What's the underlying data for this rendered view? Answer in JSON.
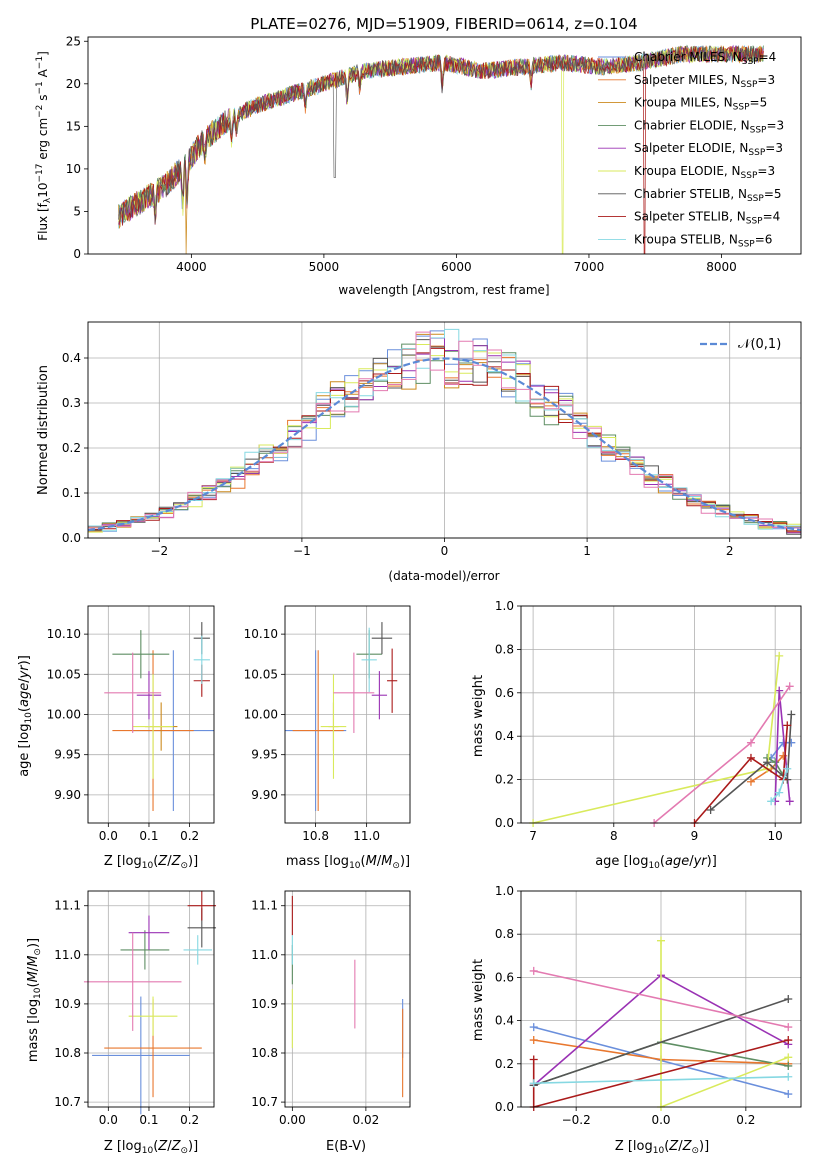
{
  "figure": {
    "title": "PLATE=0276, MJD=51909, FIBERID=0614, z=0.104"
  },
  "models": [
    {
      "name": "Chabrier MILES",
      "nssp": "4",
      "color": "#6a8fdc"
    },
    {
      "name": "Salpeter MILES",
      "nssp": "3",
      "color": "#e8772e"
    },
    {
      "name": "Kroupa MILES",
      "nssp": "5",
      "color": "#cc8a1e"
    },
    {
      "name": "Chabrier ELODIE",
      "nssp": "3",
      "color": "#5e8e63"
    },
    {
      "name": "Salpeter ELODIE",
      "nssp": "3",
      "color": "#9a32b4"
    },
    {
      "name": "Kroupa ELODIE",
      "nssp": "3",
      "color": "#d9ea5c"
    },
    {
      "name": "Chabrier STELIB",
      "nssp": "5",
      "color": "#555555"
    },
    {
      "name": "Salpeter STELIB",
      "nssp": "4",
      "color": "#aa1a1a"
    },
    {
      "name": "Kroupa STELIB",
      "nssp": "6",
      "color": "#86d8e2"
    }
  ],
  "chart_data": [
    {
      "id": "spectrum",
      "type": "line",
      "title": "PLATE=0276, MJD=51909, FIBERID=0614, z=0.104",
      "xlabel": "wavelength [Angstrom, rest frame]",
      "ylabel": "Flux [f_λ 10^-17 erg cm^-2 s^-1 A^-1]",
      "xlim": [
        3220,
        8600
      ],
      "ylim": [
        0,
        25.5
      ],
      "xticks": [
        4000,
        5000,
        6000,
        7000,
        8000
      ],
      "yticks": [
        0,
        5,
        10,
        15,
        20,
        25
      ],
      "legend": "right",
      "continuum": {
        "x": [
          3450,
          3600,
          3800,
          3950,
          4100,
          4300,
          4500,
          4800,
          5000,
          5300,
          5600,
          5900,
          6200,
          6500,
          6800,
          7100,
          7400,
          7700,
          8000,
          8300
        ],
        "y": [
          4.5,
          6.0,
          8.0,
          10.5,
          13.5,
          16.0,
          17.5,
          19.0,
          20.0,
          21.5,
          22.0,
          22.5,
          21.5,
          22.0,
          22.5,
          22.0,
          22.5,
          23.5,
          23.5,
          23.5
        ]
      },
      "dropouts": [
        {
          "x": 3960,
          "model": "Kroupa MILES"
        },
        {
          "x": 6800,
          "model": "Kroupa ELODIE"
        },
        {
          "x": 7420,
          "model": "Salpeter STELIB"
        }
      ]
    },
    {
      "id": "residuals",
      "type": "step",
      "xlabel": "(data-model)/error",
      "ylabel": "Normed distribution",
      "xlim": [
        -2.5,
        2.5
      ],
      "ylim": [
        0,
        0.48
      ],
      "xticks": [
        -2,
        -1,
        0,
        1,
        2
      ],
      "yticks": [
        0.0,
        0.1,
        0.2,
        0.3,
        0.4
      ],
      "grid": true,
      "legend": "top-right",
      "reference_label": "𝒩(0,1)",
      "reference_color": "#5b8ad6",
      "bin_width": 0.1,
      "bin_start": -2.5
    },
    {
      "id": "age-vs-Z",
      "type": "errorbar",
      "xlabel": "Z [log₁₀(Z/Z⊙)]",
      "ylabel": "age [log₁₀(age/yr)]",
      "xlim": [
        -0.05,
        0.26
      ],
      "ylim": [
        9.865,
        10.135
      ],
      "xticks": [
        0.0,
        0.1,
        0.2
      ],
      "yticks": [
        9.9,
        9.95,
        10.0,
        10.05,
        10.1
      ],
      "grid": true,
      "points": [
        {
          "model": "Chabrier MILES",
          "x": 0.16,
          "xerr": 0.1,
          "y": 9.98,
          "yerr": 0.1
        },
        {
          "model": "Salpeter MILES",
          "x": 0.11,
          "xerr": 0.1,
          "y": 9.98,
          "yerr": 0.1
        },
        {
          "model": "Kroupa MILES",
          "x": 0.13,
          "xerr": 0.04,
          "y": 9.985,
          "yerr": 0.03
        },
        {
          "model": "Chabrier ELODIE",
          "x": 0.08,
          "xerr": 0.07,
          "y": 10.075,
          "yerr": 0.03
        },
        {
          "model": "Salpeter ELODIE",
          "x": 0.1,
          "xerr": 0.03,
          "y": 10.024,
          "yerr": 0.03
        },
        {
          "model": "Kroupa ELODIE",
          "x": 0.11,
          "xerr": 0.05,
          "y": 9.985,
          "yerr": 0.065
        },
        {
          "model": "Chabrier STELIB",
          "x": 0.23,
          "xerr": 0.02,
          "y": 10.095,
          "yerr": 0.02
        },
        {
          "model": "Salpeter STELIB",
          "x": 0.23,
          "xerr": 0.02,
          "y": 10.042,
          "yerr": 0.02
        },
        {
          "model": "Kroupa STELIB",
          "x": 0.23,
          "xerr": 0.02,
          "y": 10.068,
          "yerr": 0.03
        },
        {
          "model": "pink",
          "x": 0.06,
          "xerr": 0.07,
          "y": 10.027,
          "yerr": 0.05
        }
      ]
    },
    {
      "id": "age-vs-mass",
      "type": "errorbar",
      "xlabel": "mass [log₁₀(M/M⊙)]",
      "ylabel": "",
      "xlim": [
        10.68,
        11.17
      ],
      "ylim": [
        9.865,
        10.135
      ],
      "xticks": [
        10.8,
        11.0
      ],
      "yticks": [
        9.9,
        9.95,
        10.0,
        10.05,
        10.1
      ],
      "grid": true,
      "points": [
        {
          "model": "Chabrier MILES",
          "x": 10.8,
          "xerr": 0.12,
          "y": 9.98,
          "yerr": 0.1
        },
        {
          "model": "Salpeter MILES",
          "x": 10.81,
          "xerr": 0.1,
          "y": 9.98,
          "yerr": 0.1
        },
        {
          "model": "Kroupa MILES",
          "x": 10.87,
          "xerr": 0.02,
          "y": 9.985,
          "yerr": 0.03
        },
        {
          "model": "Chabrier ELODIE",
          "x": 11.01,
          "xerr": 0.05,
          "y": 10.075,
          "yerr": 0.03
        },
        {
          "model": "Salpeter ELODIE",
          "x": 11.05,
          "xerr": 0.03,
          "y": 10.024,
          "yerr": 0.03
        },
        {
          "model": "Kroupa ELODIE",
          "x": 10.87,
          "xerr": 0.05,
          "y": 9.985,
          "yerr": 0.065
        },
        {
          "model": "Chabrier STELIB",
          "x": 11.06,
          "xerr": 0.04,
          "y": 10.095,
          "yerr": 0.02
        },
        {
          "model": "Salpeter STELIB",
          "x": 11.1,
          "xerr": 0.02,
          "y": 10.042,
          "yerr": 0.04
        },
        {
          "model": "Kroupa STELIB",
          "x": 11.01,
          "xerr": 0.03,
          "y": 10.068,
          "yerr": 0.04
        },
        {
          "model": "pink",
          "x": 10.95,
          "xerr": 0.08,
          "y": 10.027,
          "yerr": 0.05
        }
      ]
    },
    {
      "id": "mass-weight-vs-age",
      "type": "line",
      "xlabel": "age [log₁₀(age/yr)]",
      "ylabel": "mass weight",
      "xlim": [
        6.85,
        10.32
      ],
      "ylim": [
        0,
        1
      ],
      "xticks": [
        7,
        8,
        9,
        10
      ],
      "yticks": [
        0.0,
        0.2,
        0.4,
        0.6,
        0.8,
        1.0
      ],
      "grid": true,
      "series": [
        {
          "model": "Chabrier MILES",
          "x": [
            9.95,
            10.1,
            10.2
          ],
          "y": [
            0.3,
            0.37,
            0.37
          ]
        },
        {
          "model": "Salpeter MILES",
          "x": [
            9.7,
            9.95,
            10.1
          ],
          "y": [
            0.19,
            0.25,
            0.31
          ]
        },
        {
          "model": "Chabrier ELODIE",
          "x": [
            9.9,
            10.0,
            10.1
          ],
          "y": [
            0.3,
            0.28,
            0.22
          ]
        },
        {
          "model": "Salpeter ELODIE",
          "x": [
            10.0,
            10.05,
            10.18
          ],
          "y": [
            0.1,
            0.61,
            0.1
          ]
        },
        {
          "model": "Kroupa ELODIE",
          "x": [
            7.0,
            9.9,
            10.05
          ],
          "y": [
            0.0,
            0.25,
            0.77
          ]
        },
        {
          "model": "Chabrier STELIB",
          "x": [
            9.2,
            9.9,
            10.15,
            10.2
          ],
          "y": [
            0.06,
            0.28,
            0.2,
            0.5
          ]
        },
        {
          "model": "Salpeter STELIB",
          "x": [
            9.0,
            9.7,
            10.1,
            10.15
          ],
          "y": [
            0.0,
            0.3,
            0.2,
            0.45
          ]
        },
        {
          "model": "Kroupa STELIB",
          "x": [
            9.95,
            10.05,
            10.15
          ],
          "y": [
            0.1,
            0.14,
            0.25
          ]
        },
        {
          "model": "pink",
          "x": [
            8.5,
            9.7,
            10.18
          ],
          "y": [
            0.0,
            0.37,
            0.63
          ]
        }
      ]
    },
    {
      "id": "mass-vs-Z",
      "type": "errorbar",
      "xlabel": "Z [log₁₀(Z/Z⊙)]",
      "ylabel": "mass [log₁₀(M/M⊙)]",
      "xlim": [
        -0.05,
        0.26
      ],
      "ylim": [
        10.69,
        11.13
      ],
      "xticks": [
        0.0,
        0.1,
        0.2
      ],
      "yticks": [
        10.7,
        10.8,
        10.9,
        11.0,
        11.1
      ],
      "grid": true,
      "points": [
        {
          "model": "Chabrier MILES",
          "x": 0.08,
          "xerr": 0.12,
          "y": 10.795,
          "yerr": 0.12
        },
        {
          "model": "Salpeter MILES",
          "x": 0.11,
          "xerr": 0.12,
          "y": 10.81,
          "yerr": 0.1
        },
        {
          "model": "Chabrier ELODIE",
          "x": 0.09,
          "xerr": 0.06,
          "y": 11.01,
          "yerr": 0.04
        },
        {
          "model": "Salpeter ELODIE",
          "x": 0.1,
          "xerr": 0.05,
          "y": 11.045,
          "yerr": 0.035
        },
        {
          "model": "Kroupa ELODIE",
          "x": 0.11,
          "xerr": 0.06,
          "y": 10.875,
          "yerr": 0.04
        },
        {
          "model": "Chabrier STELIB",
          "x": 0.23,
          "xerr": 0.035,
          "y": 11.055,
          "yerr": 0.04
        },
        {
          "model": "Salpeter STELIB",
          "x": 0.23,
          "xerr": 0.035,
          "y": 11.1,
          "yerr": 0.03
        },
        {
          "model": "Kroupa STELIB",
          "x": 0.22,
          "xerr": 0.035,
          "y": 11.01,
          "yerr": 0.03
        },
        {
          "model": "pink",
          "x": 0.06,
          "xerr": 0.12,
          "y": 10.945,
          "yerr": 0.1
        }
      ]
    },
    {
      "id": "mass-vs-EBV",
      "type": "errorbar",
      "xlabel": "E(B-V)",
      "ylabel": "",
      "xlim": [
        -0.002,
        0.032
      ],
      "ylim": [
        10.69,
        11.13
      ],
      "xticks": [
        0.0,
        0.02
      ],
      "yticks": [
        10.7,
        10.8,
        10.9,
        11.0,
        11.1
      ],
      "grid": true,
      "points": [
        {
          "model": "Chabrier MILES",
          "x": 0.03,
          "y": 10.85,
          "yerr": 0.06
        },
        {
          "model": "Salpeter MILES",
          "x": 0.03,
          "y": 10.8,
          "yerr": 0.09
        },
        {
          "model": "Chabrier ELODIE",
          "x": 0.0,
          "y": 10.98,
          "yerr": 0.04
        },
        {
          "model": "Kroupa ELODIE",
          "x": 0.0,
          "y": 10.87,
          "yerr": 0.06
        },
        {
          "model": "Salpeter STELIB",
          "x": 0.0,
          "y": 11.08,
          "yerr": 0.04
        },
        {
          "model": "Kroupa STELIB",
          "x": 0.0,
          "y": 11.01,
          "yerr": 0.03
        },
        {
          "model": "pink",
          "x": 0.017,
          "y": 10.92,
          "yerr": 0.07
        }
      ]
    },
    {
      "id": "mass-weight-vs-Z",
      "type": "line",
      "xlabel": "Z [log₁₀(Z/Z⊙)]",
      "ylabel": "mass weight",
      "xlim": [
        -0.33,
        0.33
      ],
      "ylim": [
        0,
        1
      ],
      "xticks": [
        -0.2,
        0.0,
        0.2
      ],
      "yticks": [
        0.0,
        0.2,
        0.4,
        0.6,
        0.8,
        1.0
      ],
      "grid": true,
      "series": [
        {
          "model": "Chabrier MILES",
          "x": [
            -0.3,
            0.3
          ],
          "y": [
            0.37,
            0.06
          ]
        },
        {
          "model": "Salpeter MILES",
          "x": [
            -0.3,
            0.0,
            0.3
          ],
          "y": [
            0.31,
            0.22,
            0.2
          ]
        },
        {
          "model": "Chabrier ELODIE",
          "x": [
            -0.3,
            0.0,
            0.3
          ],
          "y": [
            0.1,
            0.3,
            0.19
          ]
        },
        {
          "model": "Salpeter ELODIE",
          "x": [
            -0.3,
            0.0,
            0.3
          ],
          "y": [
            0.1,
            0.61,
            0.29
          ]
        },
        {
          "model": "Kroupa ELODIE",
          "x": [
            0.0,
            0.0,
            0.3
          ],
          "y": [
            0.77,
            0.0,
            0.23
          ]
        },
        {
          "model": "Chabrier STELIB",
          "x": [
            -0.3,
            0.3
          ],
          "y": [
            0.1,
            0.5
          ]
        },
        {
          "model": "Salpeter STELIB",
          "x": [
            -0.3,
            -0.3,
            0.3
          ],
          "y": [
            0.22,
            0.0,
            0.31
          ]
        },
        {
          "model": "Kroupa STELIB",
          "x": [
            -0.3,
            0.3
          ],
          "y": [
            0.11,
            0.14
          ]
        },
        {
          "model": "pink",
          "x": [
            -0.3,
            0.3
          ],
          "y": [
            0.63,
            0.37
          ]
        }
      ]
    }
  ]
}
